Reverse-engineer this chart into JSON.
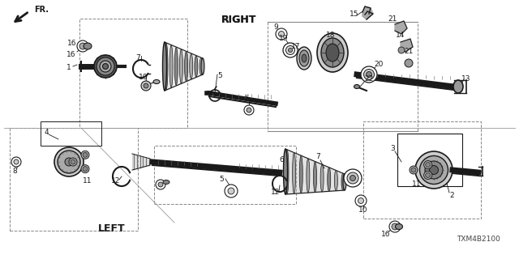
{
  "bg_color": "#ffffff",
  "fg_color": "#1a1a1a",
  "gray_dark": "#3a3a3a",
  "gray_mid": "#777777",
  "gray_light": "#aaaaaa",
  "gray_fill": "#cccccc",
  "right_label": "RIGHT",
  "left_label": "LEFT",
  "fr_label": "FR.",
  "part_number": "TXM4B2100"
}
